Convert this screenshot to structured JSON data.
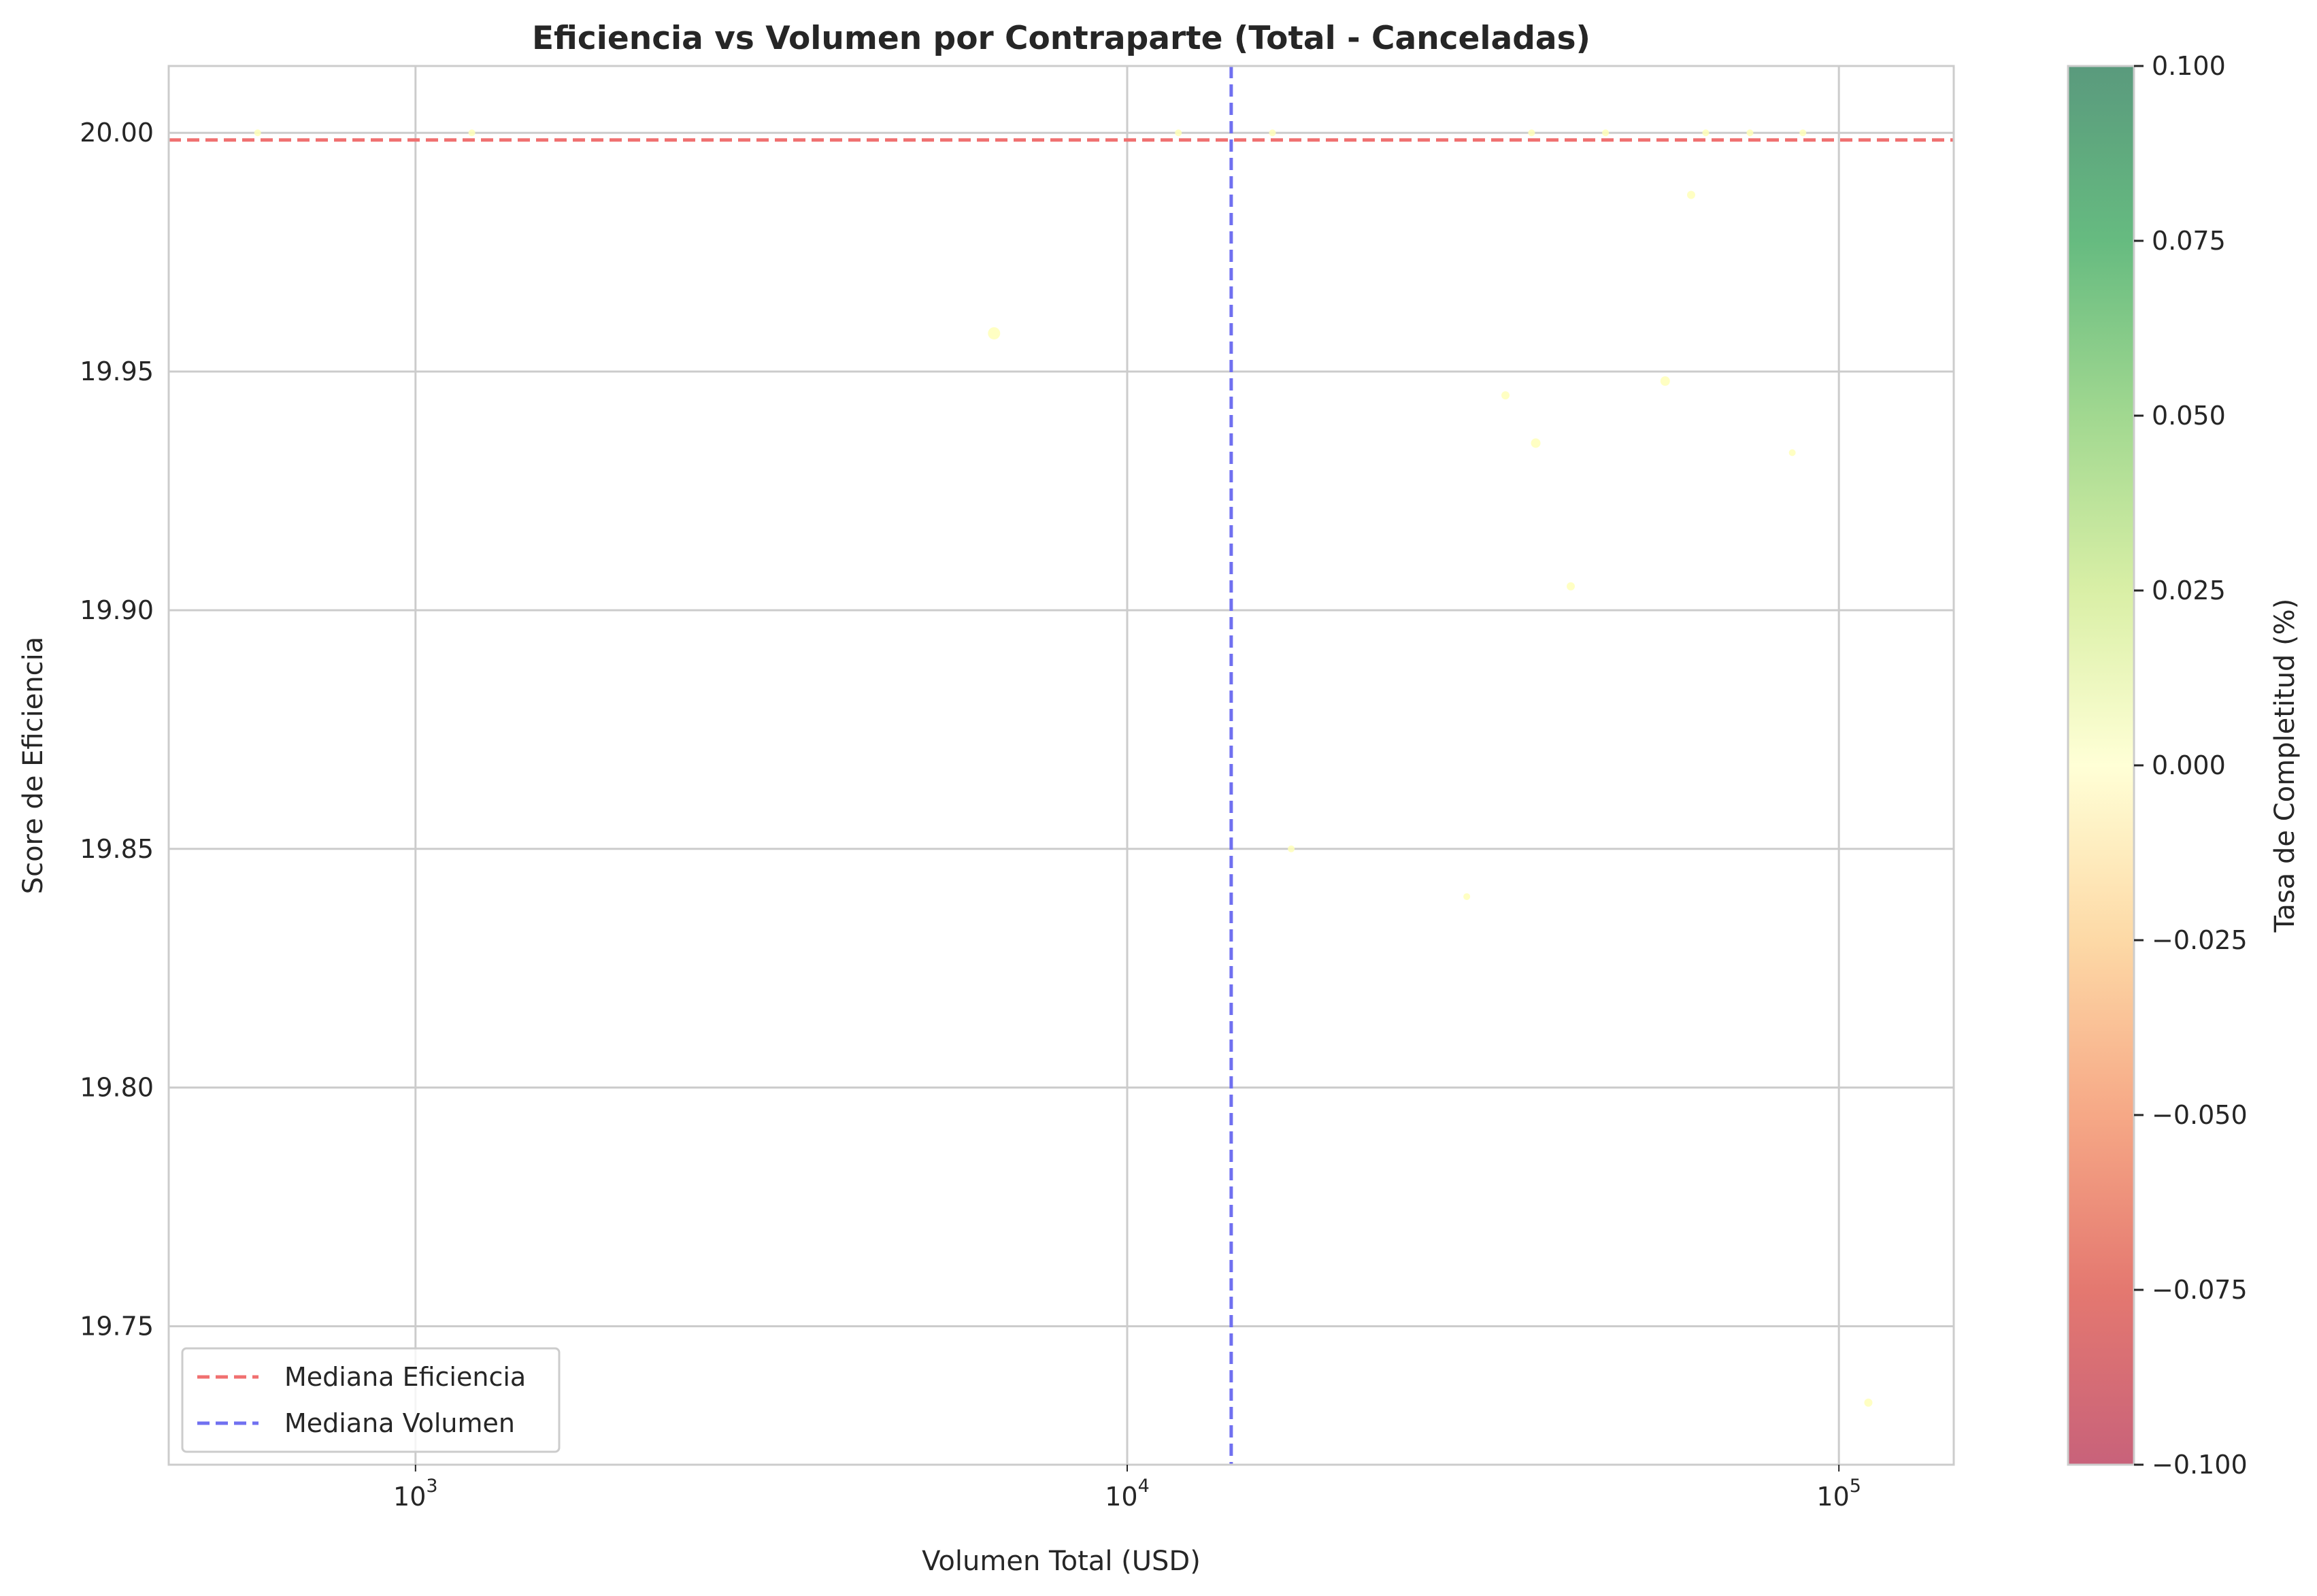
{
  "chart_data": {
    "type": "scatter",
    "title": "Eficiencia vs Volumen por Contraparte (Total - Canceladas)",
    "xlabel": "Volumen Total (USD)",
    "ylabel": "Score de Eficiencia",
    "x_scale": "log",
    "xlim": [
      450,
      145000
    ],
    "ylim": [
      19.721,
      20.014
    ],
    "x_ticks": [
      {
        "value": 1000,
        "base": "10",
        "exp": "3"
      },
      {
        "value": 10000,
        "base": "10",
        "exp": "4"
      },
      {
        "value": 100000,
        "base": "10",
        "exp": "5"
      }
    ],
    "y_ticks": [
      {
        "value": 19.75,
        "label": "19.75"
      },
      {
        "value": 19.8,
        "label": "19.80"
      },
      {
        "value": 19.85,
        "label": "19.85"
      },
      {
        "value": 19.9,
        "label": "19.90"
      },
      {
        "value": 19.95,
        "label": "19.95"
      },
      {
        "value": 20.0,
        "label": "20.00"
      }
    ],
    "grid": true,
    "legend_position": "lower-left",
    "reference_lines": [
      {
        "orientation": "horizontal",
        "value": 19.9985,
        "label": "Mediana Eficiencia",
        "color": "#f07070"
      },
      {
        "orientation": "vertical",
        "value": 14000,
        "label": "Mediana Volumen",
        "color": "#7070f0"
      }
    ],
    "point_color": "#ffffb8",
    "colorbar": {
      "label": "Tasa de Completitud (%)",
      "min": -0.1,
      "max": 0.1,
      "colors": [
        "#c8627a",
        "#e47870",
        "#f6a886",
        "#fdd9a6",
        "#ffffd6",
        "#d9efa6",
        "#a1d890",
        "#66bb80",
        "#5a9a7d"
      ],
      "ticks": [
        {
          "value": 0.1,
          "label": "0.100"
        },
        {
          "value": 0.075,
          "label": "0.075"
        },
        {
          "value": 0.05,
          "label": "0.050"
        },
        {
          "value": 0.025,
          "label": "0.025"
        },
        {
          "value": 0.0,
          "label": "0.000"
        },
        {
          "value": -0.025,
          "label": "−0.025"
        },
        {
          "value": -0.05,
          "label": "−0.050"
        },
        {
          "value": -0.075,
          "label": "−0.075"
        },
        {
          "value": -0.1,
          "label": "−0.100"
        }
      ]
    },
    "points": [
      {
        "x": 600,
        "y": 20.0,
        "size": 5
      },
      {
        "x": 1200,
        "y": 20.0,
        "size": 5
      },
      {
        "x": 6500,
        "y": 19.958,
        "size": 9
      },
      {
        "x": 11800,
        "y": 20.0,
        "size": 5
      },
      {
        "x": 16000,
        "y": 20.0,
        "size": 5
      },
      {
        "x": 17000,
        "y": 19.85,
        "size": 5
      },
      {
        "x": 30000,
        "y": 19.84,
        "size": 5
      },
      {
        "x": 34000,
        "y": 19.945,
        "size": 6
      },
      {
        "x": 37000,
        "y": 20.0,
        "size": 5
      },
      {
        "x": 37500,
        "y": 19.935,
        "size": 7
      },
      {
        "x": 42000,
        "y": 19.905,
        "size": 6
      },
      {
        "x": 47000,
        "y": 20.0,
        "size": 5
      },
      {
        "x": 57000,
        "y": 19.948,
        "size": 7
      },
      {
        "x": 62000,
        "y": 19.987,
        "size": 6
      },
      {
        "x": 65000,
        "y": 20.0,
        "size": 5
      },
      {
        "x": 75000,
        "y": 20.0,
        "size": 5
      },
      {
        "x": 86000,
        "y": 19.933,
        "size": 5
      },
      {
        "x": 89000,
        "y": 20.0,
        "size": 5
      },
      {
        "x": 110000,
        "y": 19.734,
        "size": 6
      }
    ]
  }
}
